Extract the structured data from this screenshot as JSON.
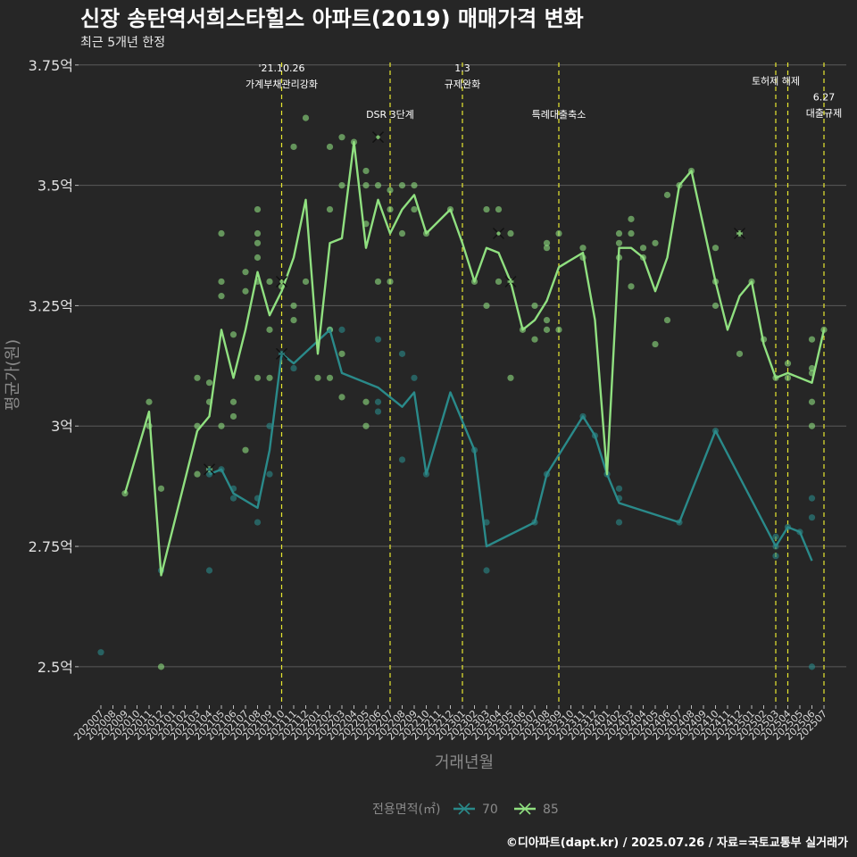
{
  "chart_data": {
    "type": "line",
    "title": "신장 송탄역서희스타힐스 아파트(2019) 매매가격 변화",
    "subtitle": "최근 5개년 한정",
    "xlabel": "거래년월",
    "ylabel": "평균가(원)",
    "caption": "©디아파트(dapt.kr) / 2025.07.26 / 자료=국토교통부 실거래가",
    "ylim": [
      2.42,
      3.77
    ],
    "yticks": [
      2.5,
      2.75,
      3.0,
      3.25,
      3.5,
      3.75
    ],
    "ytick_labels": [
      "2.5억",
      "2.75억",
      "3억",
      "3.25억",
      "3.5억",
      "3.75억"
    ],
    "x_months": [
      "202007",
      "202008",
      "202009",
      "202010",
      "202011",
      "202012",
      "202101",
      "202102",
      "202103",
      "202104",
      "202105",
      "202106",
      "202107",
      "202108",
      "202109",
      "202110",
      "202111",
      "202112",
      "202201",
      "202202",
      "202203",
      "202204",
      "202205",
      "202206",
      "202207",
      "202208",
      "202209",
      "202210",
      "202211",
      "202212",
      "202301",
      "202302",
      "202303",
      "202304",
      "202305",
      "202306",
      "202307",
      "202308",
      "202309",
      "202310",
      "202311",
      "202312",
      "202401",
      "202402",
      "202403",
      "202404",
      "202405",
      "202406",
      "202407",
      "202408",
      "202409",
      "202410",
      "202411",
      "202412",
      "202501",
      "202502",
      "202503",
      "202504",
      "202505",
      "202506",
      "202507"
    ],
    "legend_title": "전용면적(㎡)",
    "legend_position": "bottom",
    "grid": true,
    "series": [
      {
        "name": "70",
        "color": "#2a8a8a",
        "line": [
          [
            9,
            2.9
          ],
          [
            10,
            2.91
          ],
          [
            11,
            2.86
          ],
          [
            13,
            2.83
          ],
          [
            14,
            2.95
          ],
          [
            15,
            3.15
          ],
          [
            16,
            3.13
          ],
          [
            19,
            3.2
          ],
          [
            20,
            3.11
          ],
          [
            23,
            3.08
          ],
          [
            25,
            3.04
          ],
          [
            26,
            3.07
          ],
          [
            27,
            2.9
          ],
          [
            29,
            3.07
          ],
          [
            31,
            2.95
          ],
          [
            32,
            2.75
          ],
          [
            36,
            2.8
          ],
          [
            37,
            2.9
          ],
          [
            40,
            3.02
          ],
          [
            41,
            2.98
          ],
          [
            42,
            2.9
          ],
          [
            43,
            2.84
          ],
          [
            48,
            2.8
          ],
          [
            51,
            2.99
          ],
          [
            56,
            2.75
          ],
          [
            57,
            2.79
          ],
          [
            58,
            2.78
          ],
          [
            59,
            2.72
          ]
        ],
        "points": [
          [
            0,
            2.53
          ],
          [
            5,
            2.7
          ],
          [
            9,
            2.7
          ],
          [
            9,
            2.9
          ],
          [
            10,
            2.91
          ],
          [
            11,
            2.87
          ],
          [
            11,
            2.85
          ],
          [
            13,
            2.85
          ],
          [
            13,
            2.8
          ],
          [
            14,
            3.0
          ],
          [
            14,
            2.9
          ],
          [
            15,
            3.15
          ],
          [
            16,
            3.12
          ],
          [
            19,
            3.2
          ],
          [
            20,
            3.2
          ],
          [
            23,
            3.18
          ],
          [
            23,
            3.05
          ],
          [
            23,
            3.03
          ],
          [
            25,
            3.15
          ],
          [
            25,
            2.93
          ],
          [
            26,
            3.1
          ],
          [
            27,
            2.9
          ],
          [
            31,
            2.95
          ],
          [
            32,
            2.8
          ],
          [
            32,
            2.7
          ],
          [
            36,
            2.8
          ],
          [
            37,
            2.9
          ],
          [
            40,
            3.02
          ],
          [
            41,
            2.98
          ],
          [
            42,
            2.9
          ],
          [
            43,
            2.87
          ],
          [
            43,
            2.85
          ],
          [
            43,
            2.8
          ],
          [
            48,
            2.8
          ],
          [
            51,
            2.99
          ],
          [
            56,
            2.77
          ],
          [
            56,
            2.75
          ],
          [
            56,
            2.73
          ],
          [
            57,
            2.79
          ],
          [
            58,
            2.78
          ],
          [
            59,
            2.85
          ],
          [
            59,
            2.81
          ],
          [
            59,
            2.5
          ]
        ]
      },
      {
        "name": "85",
        "color": "#90e080",
        "line": [
          [
            2,
            2.86
          ],
          [
            4,
            3.03
          ],
          [
            5,
            2.69
          ],
          [
            8,
            2.99
          ],
          [
            9,
            3.02
          ],
          [
            10,
            3.2
          ],
          [
            11,
            3.1
          ],
          [
            12,
            3.2
          ],
          [
            13,
            3.32
          ],
          [
            14,
            3.23
          ],
          [
            15,
            3.28
          ],
          [
            16,
            3.35
          ],
          [
            17,
            3.47
          ],
          [
            18,
            3.15
          ],
          [
            19,
            3.38
          ],
          [
            20,
            3.39
          ],
          [
            21,
            3.59
          ],
          [
            22,
            3.37
          ],
          [
            23,
            3.47
          ],
          [
            24,
            3.4
          ],
          [
            25,
            3.45
          ],
          [
            26,
            3.48
          ],
          [
            27,
            3.4
          ],
          [
            29,
            3.45
          ],
          [
            30,
            3.38
          ],
          [
            31,
            3.3
          ],
          [
            32,
            3.37
          ],
          [
            33,
            3.36
          ],
          [
            34,
            3.3
          ],
          [
            35,
            3.2
          ],
          [
            36,
            3.22
          ],
          [
            37,
            3.26
          ],
          [
            38,
            3.33
          ],
          [
            40,
            3.36
          ],
          [
            41,
            3.22
          ],
          [
            42,
            2.9
          ],
          [
            43,
            3.37
          ],
          [
            44,
            3.37
          ],
          [
            45,
            3.35
          ],
          [
            46,
            3.28
          ],
          [
            47,
            3.35
          ],
          [
            48,
            3.5
          ],
          [
            49,
            3.53
          ],
          [
            51,
            3.3
          ],
          [
            52,
            3.2
          ],
          [
            53,
            3.27
          ],
          [
            54,
            3.3
          ],
          [
            55,
            3.17
          ],
          [
            56,
            3.1
          ],
          [
            57,
            3.11
          ],
          [
            59,
            3.09
          ],
          [
            60,
            3.2
          ]
        ],
        "points": [
          [
            2,
            2.86
          ],
          [
            4,
            3.05
          ],
          [
            4,
            3.0
          ],
          [
            5,
            2.87
          ],
          [
            5,
            2.5
          ],
          [
            8,
            3.1
          ],
          [
            8,
            3.0
          ],
          [
            8,
            2.9
          ],
          [
            9,
            3.09
          ],
          [
            9,
            3.05
          ],
          [
            9,
            2.91
          ],
          [
            10,
            3.4
          ],
          [
            10,
            3.3
          ],
          [
            10,
            3.27
          ],
          [
            10,
            3.0
          ],
          [
            11,
            3.19
          ],
          [
            11,
            3.05
          ],
          [
            11,
            3.02
          ],
          [
            12,
            3.32
          ],
          [
            12,
            3.28
          ],
          [
            12,
            2.95
          ],
          [
            13,
            3.45
          ],
          [
            13,
            3.4
          ],
          [
            13,
            3.38
          ],
          [
            13,
            3.35
          ],
          [
            13,
            3.3
          ],
          [
            13,
            3.1
          ],
          [
            14,
            3.3
          ],
          [
            14,
            3.2
          ],
          [
            14,
            3.1
          ],
          [
            15,
            3.29
          ],
          [
            16,
            3.58
          ],
          [
            16,
            3.25
          ],
          [
            16,
            3.22
          ],
          [
            17,
            3.64
          ],
          [
            17,
            3.3
          ],
          [
            18,
            3.1
          ],
          [
            19,
            3.58
          ],
          [
            19,
            3.45
          ],
          [
            19,
            3.2
          ],
          [
            19,
            3.1
          ],
          [
            20,
            3.6
          ],
          [
            20,
            3.5
          ],
          [
            20,
            3.15
          ],
          [
            20,
            3.06
          ],
          [
            21,
            3.59
          ],
          [
            22,
            3.53
          ],
          [
            22,
            3.5
          ],
          [
            22,
            3.42
          ],
          [
            22,
            3.05
          ],
          [
            22,
            3.0
          ],
          [
            23,
            3.5
          ],
          [
            23,
            3.3
          ],
          [
            24,
            3.49
          ],
          [
            24,
            3.45
          ],
          [
            24,
            3.3
          ],
          [
            25,
            3.5
          ],
          [
            25,
            3.4
          ],
          [
            26,
            3.5
          ],
          [
            26,
            3.45
          ],
          [
            27,
            3.4
          ],
          [
            29,
            3.45
          ],
          [
            31,
            3.3
          ],
          [
            32,
            3.45
          ],
          [
            32,
            3.25
          ],
          [
            33,
            3.45
          ],
          [
            33,
            3.3
          ],
          [
            34,
            3.4
          ],
          [
            34,
            3.3
          ],
          [
            34,
            3.1
          ],
          [
            35,
            3.2
          ],
          [
            36,
            3.25
          ],
          [
            36,
            3.18
          ],
          [
            37,
            3.38
          ],
          [
            37,
            3.37
          ],
          [
            37,
            3.22
          ],
          [
            37,
            3.2
          ],
          [
            38,
            3.4
          ],
          [
            38,
            3.2
          ],
          [
            40,
            3.37
          ],
          [
            40,
            3.35
          ],
          [
            43,
            3.4
          ],
          [
            43,
            3.38
          ],
          [
            43,
            3.35
          ],
          [
            44,
            3.43
          ],
          [
            44,
            3.4
          ],
          [
            44,
            3.29
          ],
          [
            45,
            3.37
          ],
          [
            45,
            3.35
          ],
          [
            46,
            3.38
          ],
          [
            46,
            3.17
          ],
          [
            47,
            3.48
          ],
          [
            47,
            3.22
          ],
          [
            48,
            3.5
          ],
          [
            49,
            3.53
          ],
          [
            51,
            3.37
          ],
          [
            51,
            3.3
          ],
          [
            51,
            3.25
          ],
          [
            53,
            3.4
          ],
          [
            53,
            3.15
          ],
          [
            54,
            3.3
          ],
          [
            55,
            3.18
          ],
          [
            56,
            3.1
          ],
          [
            57,
            3.13
          ],
          [
            57,
            3.1
          ],
          [
            59,
            3.18
          ],
          [
            59,
            3.12
          ],
          [
            59,
            3.11
          ],
          [
            59,
            3.05
          ],
          [
            59,
            3.0
          ],
          [
            60,
            3.2
          ]
        ]
      }
    ],
    "x_markers": [
      {
        "series": "70",
        "x": 9,
        "y": 2.91
      },
      {
        "series": "70",
        "x": 15,
        "y": 3.15
      },
      {
        "series": "85",
        "x": 15,
        "y": 3.3
      },
      {
        "series": "85",
        "x": 23,
        "y": 3.6
      },
      {
        "series": "85",
        "x": 33,
        "y": 3.4
      },
      {
        "series": "85",
        "x": 34,
        "y": 3.3
      },
      {
        "series": "85",
        "x": 53,
        "y": 3.4
      }
    ],
    "events": [
      {
        "x": 15,
        "lines": [
          "'21.10.26",
          "가계부채관리강화"
        ],
        "label_y": 3.72
      },
      {
        "x": 24,
        "lines": [
          "DSR 3단계"
        ],
        "label_y": 3.64
      },
      {
        "x": 30,
        "lines": [
          "1.3",
          "규제완화"
        ],
        "label_y": 3.72
      },
      {
        "x": 38,
        "lines": [
          "특례대출축소"
        ],
        "label_y": 3.64
      },
      {
        "x": 56,
        "lines": [
          "토허제 해제"
        ],
        "label_y": 3.71
      },
      {
        "x": 57,
        "lines": [],
        "label_y": 3.71
      },
      {
        "x": 60,
        "lines": [
          "6.27",
          "대출규제"
        ],
        "label_y": 3.66
      }
    ]
  }
}
